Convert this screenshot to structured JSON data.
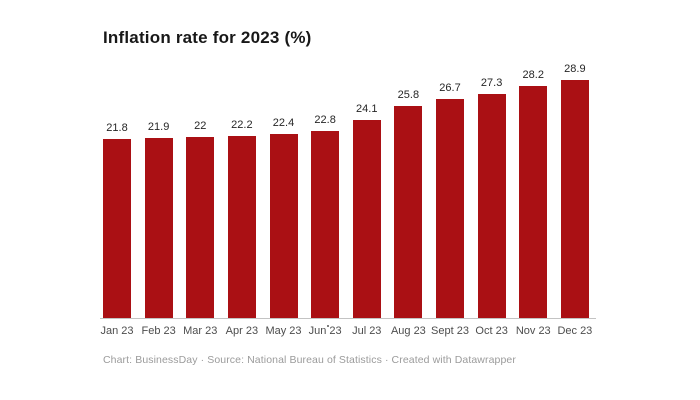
{
  "title": "Inflation rate for 2023 (%)",
  "footer": {
    "text": "Chart: BusinessDay · Source: National Bureau of Statistics · Created with Datawrapper"
  },
  "chart_data": {
    "type": "bar",
    "title": "Inflation rate for 2023 (%)",
    "categories": [
      "Jan 23",
      "Feb 23",
      "Mar 23",
      "Apr 23",
      "May 23",
      "Jun 23",
      "Jul 23",
      "Aug 23",
      "Sept 23",
      "Oct 23",
      "Nov 23",
      "Dec 23"
    ],
    "values": [
      21.8,
      21.9,
      22,
      22.2,
      22.4,
      22.8,
      24.1,
      25.8,
      26.7,
      27.3,
      28.2,
      28.9
    ],
    "value_labels": [
      "21.8",
      "21.9",
      "22",
      "22.2",
      "22.4",
      "22.8",
      "24.1",
      "25.8",
      "26.7",
      "27.3",
      "28.2",
      "28.9"
    ],
    "xlabel": "",
    "ylabel": "",
    "ylim": [
      0,
      29
    ],
    "grid": false,
    "legend_position": "none",
    "bar_color": "#aa1014"
  },
  "colors": {
    "background": "#ffffff",
    "bar": "#aa1014",
    "axis_line": "#c3c3c3",
    "title_text": "#181818",
    "value_label_text": "#262626",
    "axis_label_text": "#4d4d4d",
    "footer_text": "#9b9b9b"
  }
}
